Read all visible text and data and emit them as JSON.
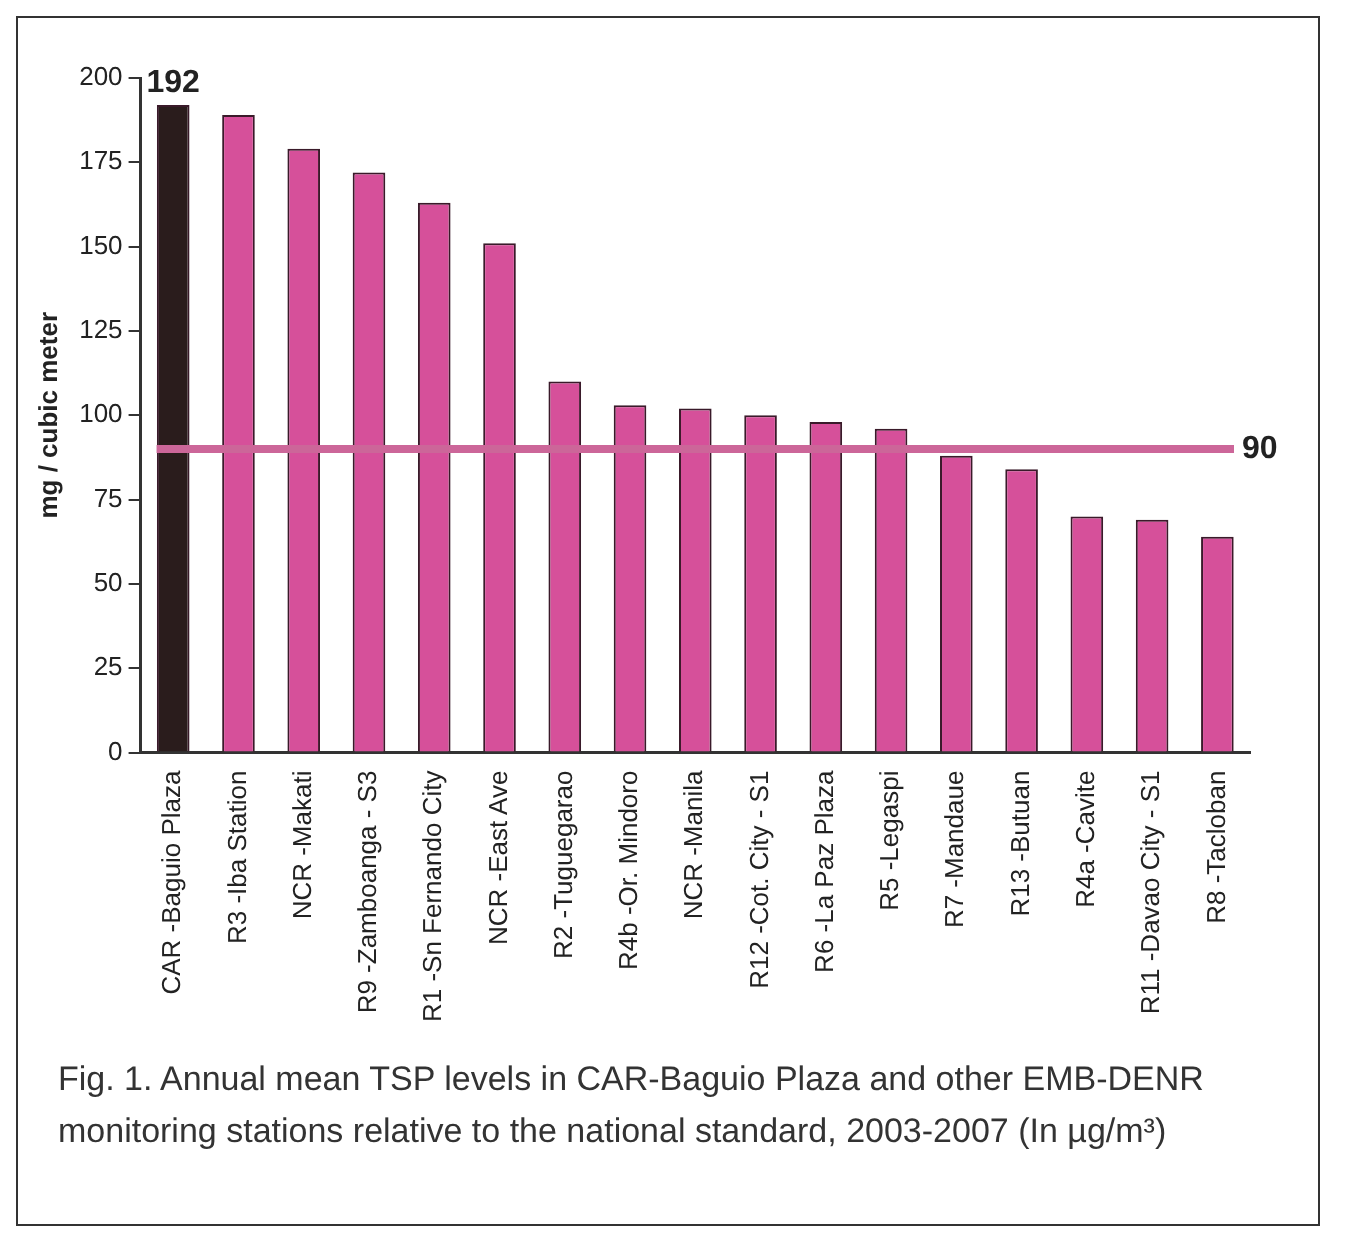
{
  "chart_data": {
    "type": "bar",
    "ylabel": "mg / cubic meter",
    "categories": [
      "CAR -Baguio Plaza",
      "R3 -Iba Station",
      "NCR -Makati",
      "R9 -Zamboanga - S3",
      "R1 -Sn Fernando City",
      "NCR -East Ave",
      "R2 -Tuguegarao",
      "R4b -Or. Mindoro",
      "NCR -Manila",
      "R12 -Cot. City - S1",
      "R6 -La Paz Plaza",
      "R5 -Legaspi",
      "R7 -Mandaue",
      "R13 -Butuan",
      "R4a -Cavite",
      "R11 -Davao City - S1",
      "R8 -Tacloban"
    ],
    "values": [
      192,
      189,
      179,
      172,
      163,
      151,
      110,
      103,
      102,
      100,
      98,
      96,
      88,
      84,
      70,
      69,
      64
    ],
    "colors": [
      "#2a1c1c",
      "#d6509a",
      "#d6509a",
      "#d6509a",
      "#d6509a",
      "#d6509a",
      "#d6509a",
      "#d6509a",
      "#d6509a",
      "#d6509a",
      "#d6509a",
      "#d6509a",
      "#d6509a",
      "#d6509a",
      "#d6509a",
      "#d6509a",
      "#d6509a"
    ],
    "value_labels": [
      "192",
      null,
      null,
      null,
      null,
      null,
      null,
      null,
      null,
      null,
      null,
      null,
      null,
      null,
      null,
      null,
      null
    ],
    "ylim": [
      0,
      200
    ],
    "yticks": [
      0,
      25,
      50,
      75,
      100,
      125,
      150,
      175,
      200
    ],
    "grid": false,
    "legend": false,
    "ref_lines": [
      {
        "axis": "y",
        "value": 90,
        "label": "90",
        "color": "#cc6699"
      }
    ],
    "annotations": [
      "Fig. 1. Annual mean TSP levels in CAR-Baguio Plaza and other EMB-DENR monitoring stations  relative to the national standard, 2003-2007 (In µg/m³)"
    ]
  }
}
